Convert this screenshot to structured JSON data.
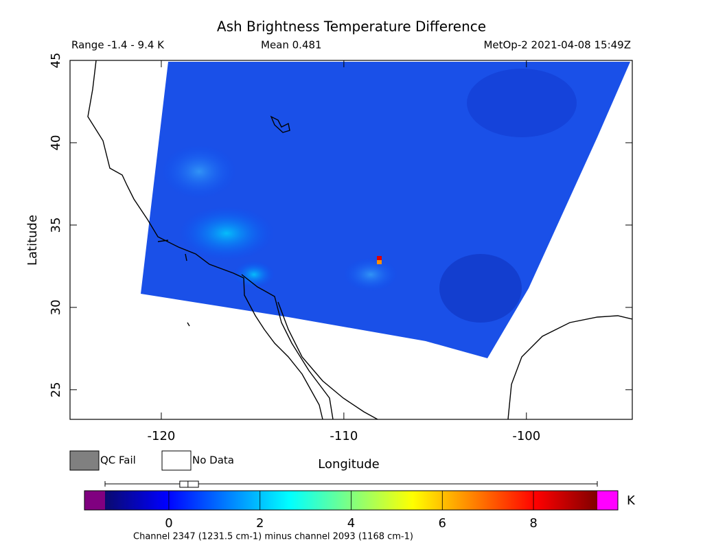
{
  "chart_data": {
    "type": "map",
    "title": "Ash Brightness Temperature Difference",
    "range_text": "Range -1.4 - 9.4 K",
    "mean_text": "Mean 0.481",
    "source_text": "MetOp-2 2021-04-08 15:49Z",
    "xlabel": "Longitude",
    "ylabel": "Latitude",
    "xlim": [
      -125,
      -94.2
    ],
    "ylim": [
      23.2,
      45
    ],
    "xticks": [
      -120,
      -110,
      -100
    ],
    "yticks": [
      25,
      30,
      35,
      40,
      45
    ],
    "legend": [
      "QC Fail",
      "No Data"
    ],
    "legend_colors": [
      "#808080",
      "#ffffff"
    ],
    "colorbar": {
      "lim": [
        -1.4,
        9.4
      ],
      "ticks": [
        0,
        2,
        4,
        6,
        8
      ],
      "unit": "K",
      "colors": [
        "#0a0a6e",
        "#0000ff",
        "#0080ff",
        "#00ffff",
        "#80ff80",
        "#ffff00",
        "#ff8000",
        "#ff0000",
        "#800000"
      ],
      "under_color": "#800080",
      "over_color": "#ff00ff",
      "box": {
        "min": -1.4,
        "q1": 0.24,
        "median": 0.42,
        "q3": 0.65,
        "max": 9.4
      },
      "caption": "Channel 2347 (1231.5 cm-1) minus channel 2093 (1168 cm-1)"
    }
  }
}
